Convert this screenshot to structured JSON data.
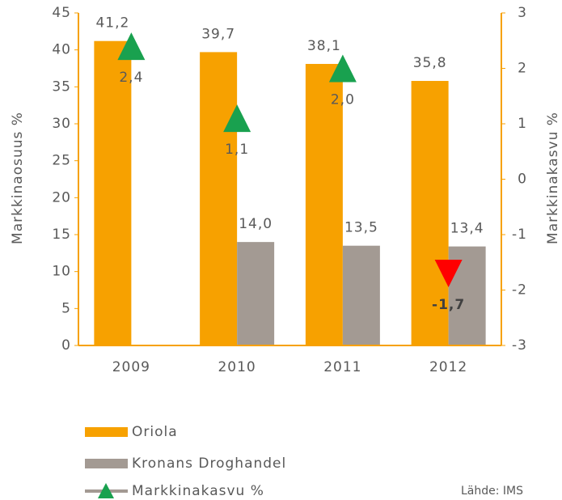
{
  "chart_data": {
    "type": "bar",
    "categories": [
      "2009",
      "2010",
      "2011",
      "2012"
    ],
    "series": [
      {
        "name": "Oriola",
        "color": "#f7a100",
        "values": [
          41.2,
          39.7,
          38.1,
          35.8
        ],
        "value_labels": [
          "41,2",
          "39,7",
          "38,1",
          "35,8"
        ]
      },
      {
        "name": "Kronans Droghandel",
        "color": "#a39a93",
        "values": [
          null,
          14.0,
          13.5,
          13.4
        ],
        "value_labels": [
          null,
          "14,0",
          "13,5",
          "13,4"
        ]
      },
      {
        "name": "Markkinakasvu %",
        "color": "#19a14f",
        "negative_color": "#ff0000",
        "axis": "y2",
        "values": [
          2.4,
          1.1,
          2.0,
          -1.7
        ],
        "value_labels": [
          "2,4",
          "1,1",
          "2,0",
          "-1,7"
        ]
      }
    ],
    "ylabel": "Markkinaosuus %",
    "y2label": "Markkinakasvu %",
    "ylim": [
      0,
      45
    ],
    "yticks": [
      0,
      5,
      10,
      15,
      20,
      25,
      30,
      35,
      40,
      45
    ],
    "y2lim": [
      -3,
      3
    ],
    "y2ticks": [
      -3,
      -2,
      -1,
      0,
      1,
      2,
      3
    ],
    "axis_color": "#f7a100",
    "source": "Lähde: IMS"
  }
}
